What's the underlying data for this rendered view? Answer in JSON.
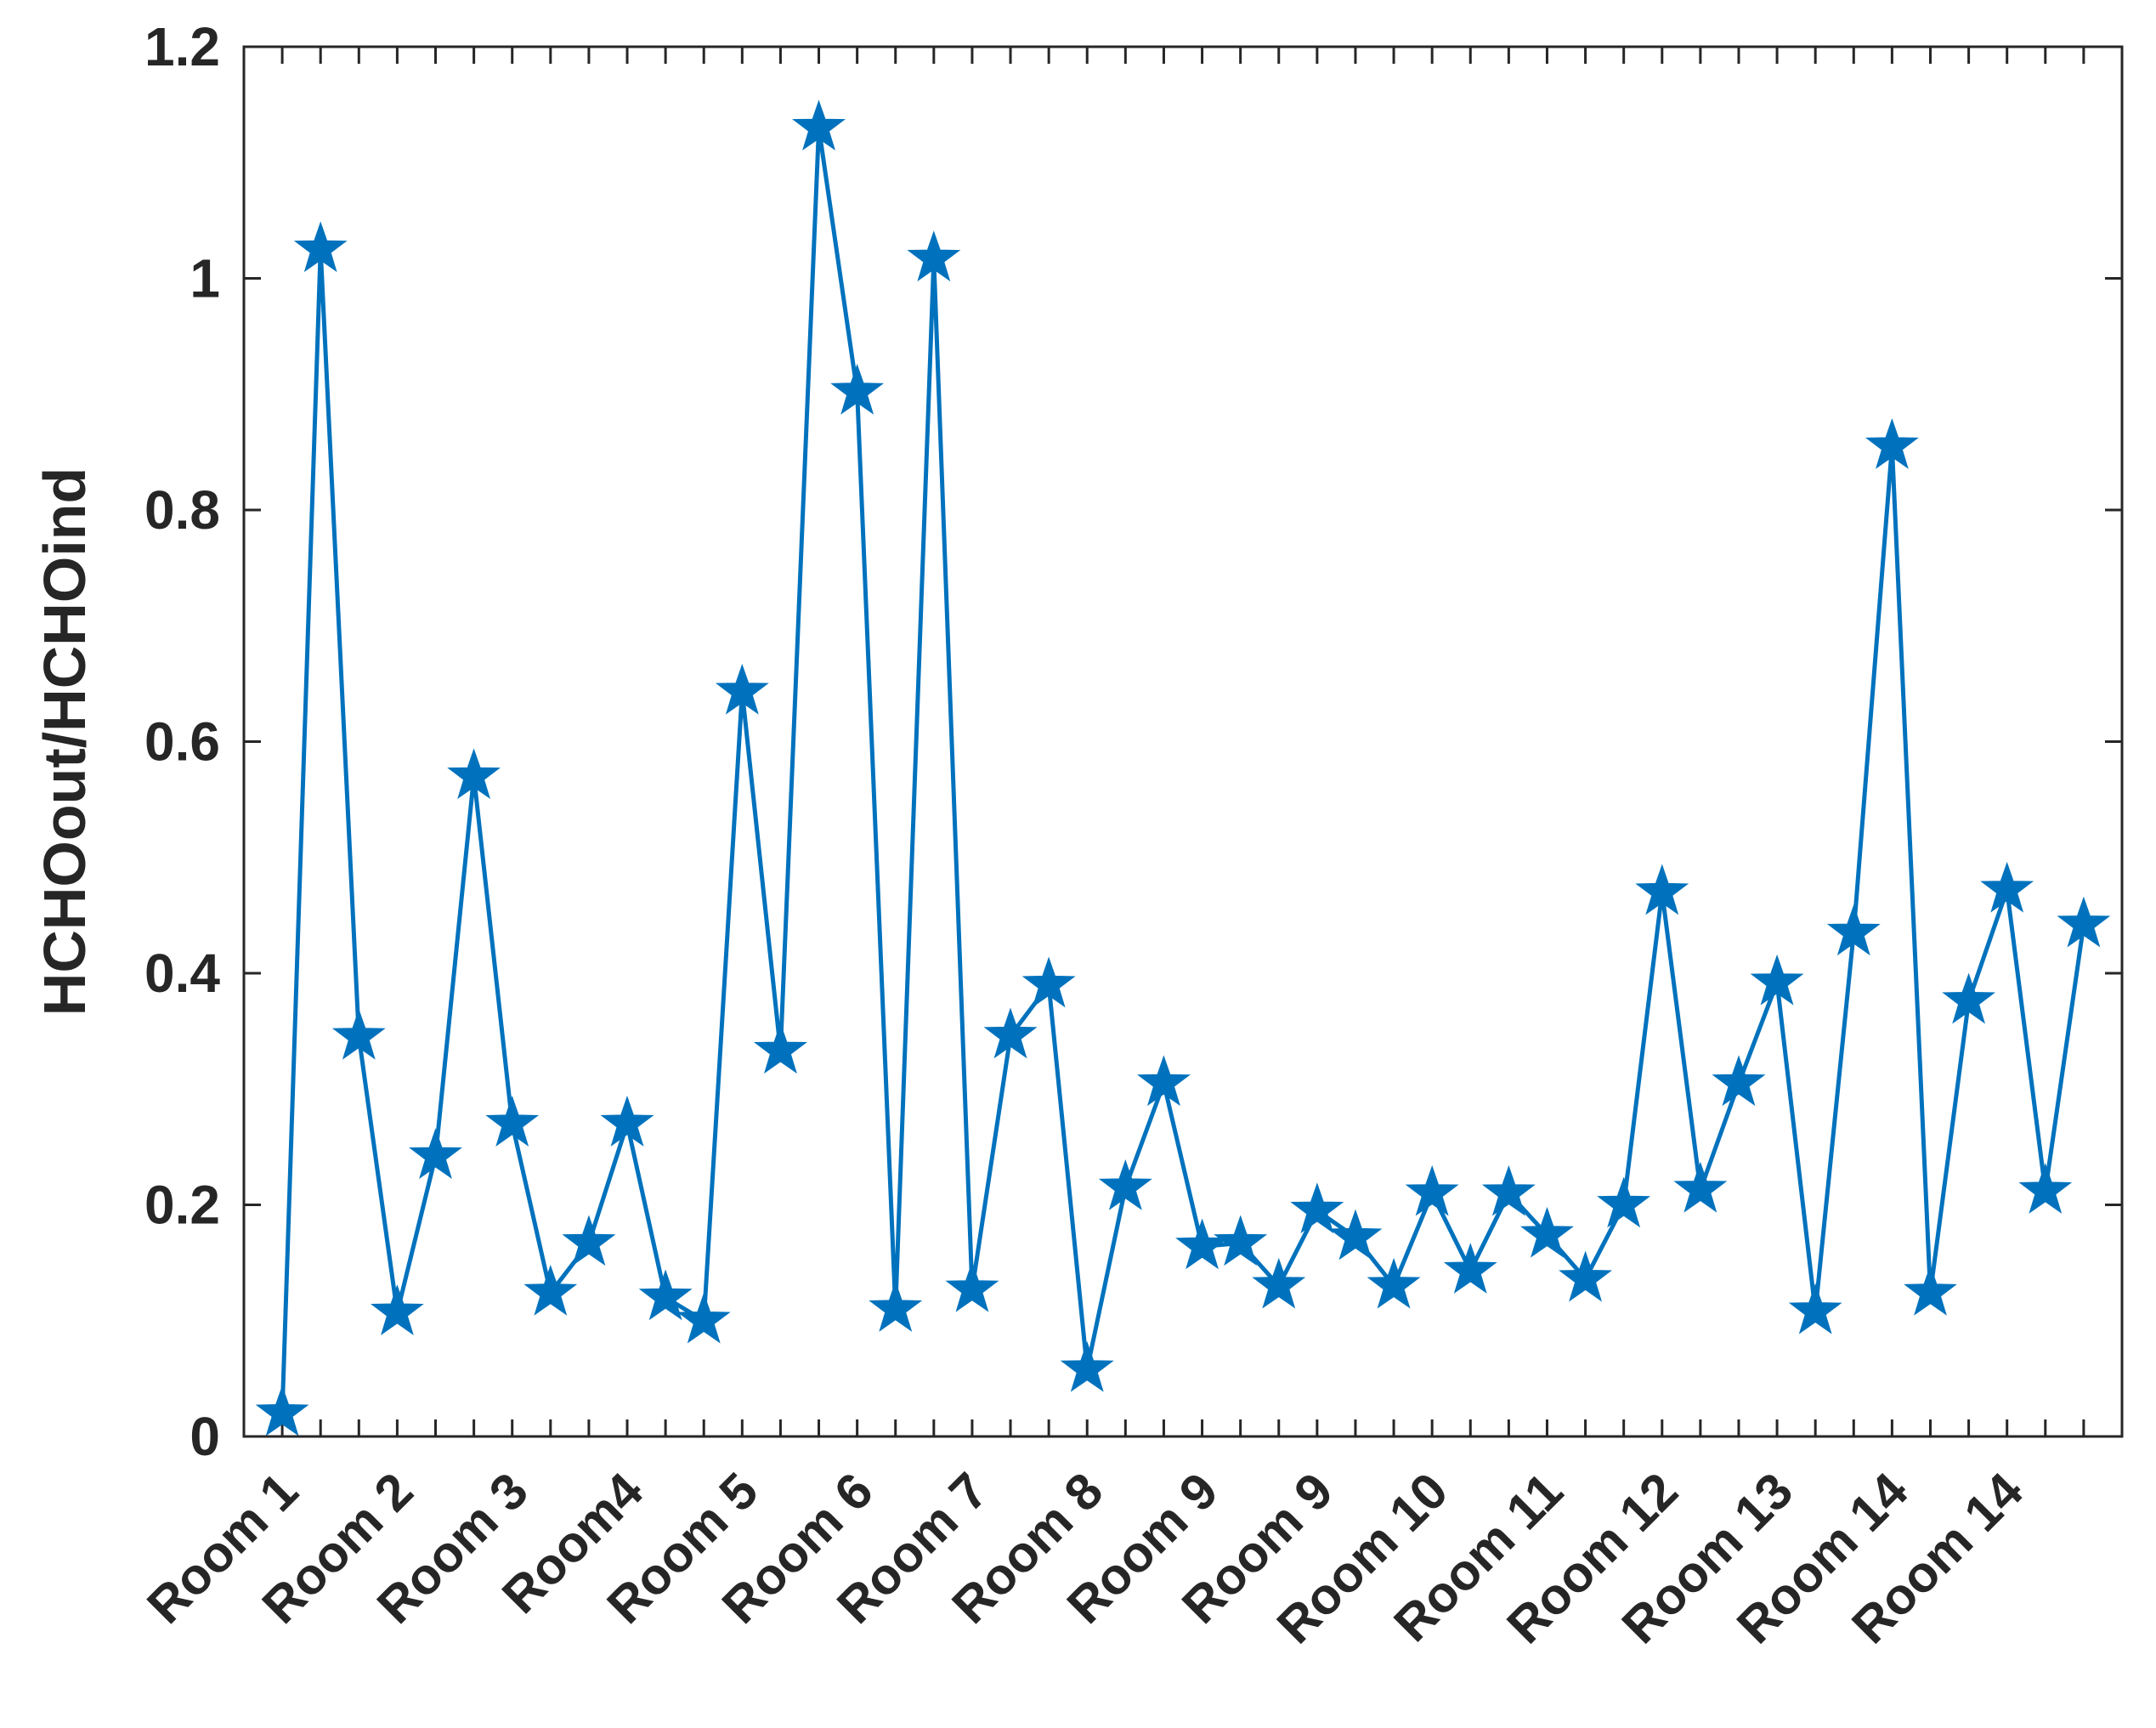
{
  "chart_data": {
    "type": "line",
    "title": "",
    "xlabel": "",
    "ylabel": "HCHOout/HCHOind",
    "ylim": [
      0,
      1.2
    ],
    "yticks": [
      "0",
      "0.2",
      "0.4",
      "0.6",
      "0.8",
      "1",
      "1.2"
    ],
    "ytick_values": [
      0,
      0.2,
      0.4,
      0.6,
      0.8,
      1.0,
      1.2
    ],
    "xlim": [
      0,
      49
    ],
    "categories": [
      "Room 1",
      "Room 2",
      "Room 3",
      "Room4",
      "Room 5",
      "Room 6",
      "Room 7",
      "Room 8",
      "Room 9",
      "Room 9",
      "Room 10",
      "Room 11",
      "Room 12",
      "Room 13",
      "Room 14",
      "Room 14"
    ],
    "category_positions": [
      1,
      4,
      7,
      10,
      13,
      16,
      19,
      22,
      25,
      28,
      31,
      34,
      37,
      40,
      43,
      46
    ],
    "grid": false,
    "color": "#0072BD",
    "series": [
      {
        "marker": "star",
        "x": [
          1,
          2,
          3,
          4,
          5,
          6,
          7,
          8,
          9,
          10,
          11,
          12,
          13,
          14,
          15,
          16,
          17,
          18,
          19,
          20,
          21,
          22,
          23,
          24,
          25,
          26,
          27,
          28,
          29,
          30,
          31,
          32,
          33,
          34,
          35,
          36,
          37,
          38,
          39,
          40,
          41,
          42,
          43,
          44,
          45,
          46,
          47,
          48
        ],
        "values": [
          0.02,
          1.025,
          0.345,
          0.107,
          0.242,
          0.57,
          0.27,
          0.124,
          0.167,
          0.27,
          0.12,
          0.1,
          0.643,
          0.333,
          1.13,
          0.902,
          0.11,
          1.017,
          0.127,
          0.346,
          0.39,
          0.058,
          0.215,
          0.305,
          0.164,
          0.167,
          0.13,
          0.195,
          0.172,
          0.13,
          0.21,
          0.143,
          0.21,
          0.174,
          0.136,
          0.2,
          0.47,
          0.213,
          0.305,
          0.392,
          0.108,
          0.435,
          0.855,
          0.124,
          0.376,
          0.472,
          0.212,
          0.442
        ]
      }
    ]
  }
}
